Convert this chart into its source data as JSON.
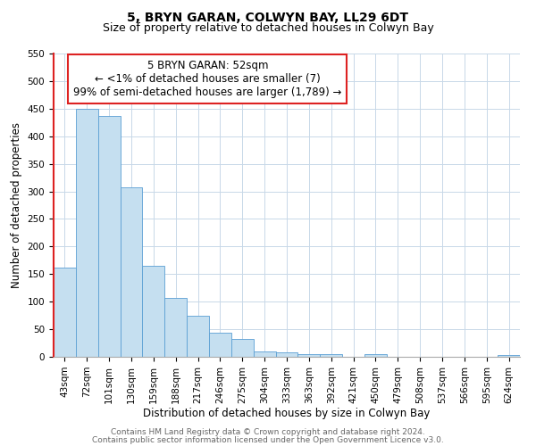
{
  "title": "5, BRYN GARAN, COLWYN BAY, LL29 6DT",
  "subtitle": "Size of property relative to detached houses in Colwyn Bay",
  "xlabel": "Distribution of detached houses by size in Colwyn Bay",
  "ylabel": "Number of detached properties",
  "bar_labels": [
    "43sqm",
    "72sqm",
    "101sqm",
    "130sqm",
    "159sqm",
    "188sqm",
    "217sqm",
    "246sqm",
    "275sqm",
    "304sqm",
    "333sqm",
    "363sqm",
    "392sqm",
    "421sqm",
    "450sqm",
    "479sqm",
    "508sqm",
    "537sqm",
    "566sqm",
    "595sqm",
    "624sqm"
  ],
  "bar_values": [
    162,
    450,
    437,
    308,
    165,
    107,
    74,
    43,
    33,
    10,
    8,
    5,
    5,
    0,
    5,
    0,
    0,
    0,
    0,
    0,
    3
  ],
  "bar_color": "#c5dff0",
  "bar_edge_color": "#5b9fd4",
  "highlight_color": "#dd2222",
  "ylim": [
    0,
    550
  ],
  "yticks": [
    0,
    50,
    100,
    150,
    200,
    250,
    300,
    350,
    400,
    450,
    500,
    550
  ],
  "annotation_title": "5 BRYN GARAN: 52sqm",
  "annotation_line1": "← <1% of detached houses are smaller (7)",
  "annotation_line2": "99% of semi-detached houses are larger (1,789) →",
  "footer_line1": "Contains HM Land Registry data © Crown copyright and database right 2024.",
  "footer_line2": "Contains public sector information licensed under the Open Government Licence v3.0.",
  "title_fontsize": 10,
  "subtitle_fontsize": 9,
  "axis_label_fontsize": 8.5,
  "tick_fontsize": 7.5,
  "annotation_fontsize": 8.5,
  "footer_fontsize": 6.5,
  "background_color": "#ffffff",
  "grid_color": "#c8d8e8"
}
